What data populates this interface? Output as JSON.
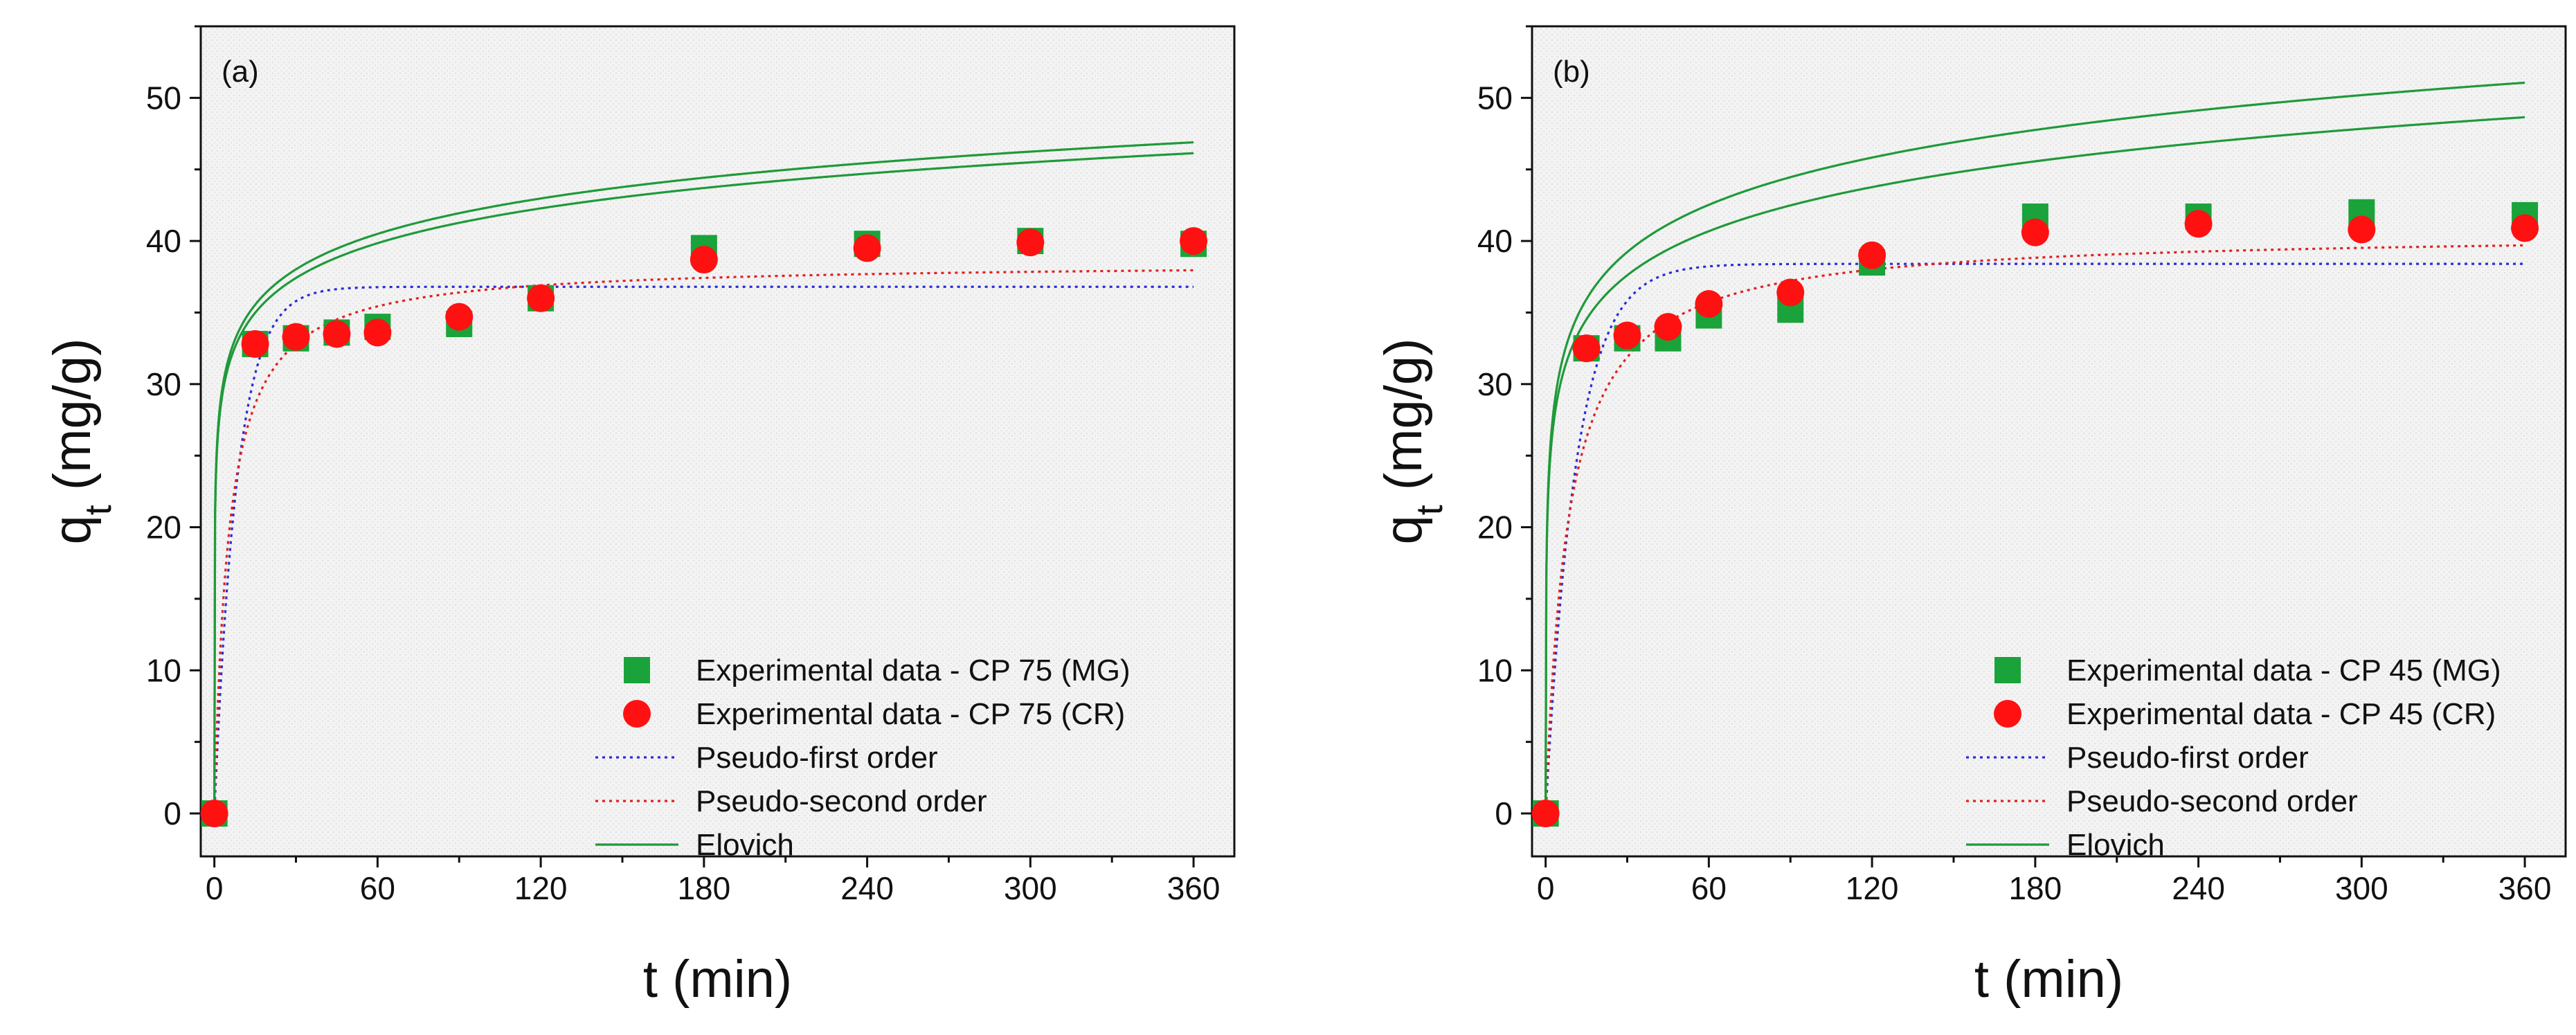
{
  "figure": {
    "panels": [
      "a",
      "b"
    ]
  },
  "colors": {
    "mg_marker": "#1aa33a",
    "cr_marker": "#ff1111",
    "pfo_line": "#2b2bd8",
    "pso_line": "#e02020",
    "elovich_line": "#1f9a3a",
    "axis": "#111111",
    "plot_background": "#f1f1f1"
  },
  "chart_data": [
    {
      "type": "scatter",
      "panel_label": "(a)",
      "xlabel": "t (min)",
      "ylabel_main": "q",
      "ylabel_sub": "t",
      "ylabel_unit": " (mg/g)",
      "xlim": [
        -5,
        375
      ],
      "ylim": [
        -3,
        55
      ],
      "xticks": [
        "0",
        "60",
        "120",
        "180",
        "240",
        "300",
        "360"
      ],
      "yticks": [
        "0",
        "10",
        "20",
        "30",
        "40",
        "50"
      ],
      "legend_position": "bottom-right",
      "series": [
        {
          "name": "Experimental data - CP 75 (MG)",
          "kind": "square",
          "x": [
            0,
            15,
            30,
            45,
            60,
            90,
            120,
            180,
            240,
            300,
            360
          ],
          "y": [
            0,
            32.8,
            33.2,
            33.6,
            34.0,
            34.2,
            36.0,
            39.5,
            39.8,
            40.0,
            39.8
          ]
        },
        {
          "name": "Experimental data - CP 75 (CR)",
          "kind": "circle",
          "x": [
            0,
            15,
            30,
            45,
            60,
            90,
            120,
            180,
            240,
            300,
            360
          ],
          "y": [
            0,
            32.8,
            33.3,
            33.5,
            33.6,
            34.7,
            36.0,
            38.7,
            39.5,
            39.9,
            40.0
          ]
        },
        {
          "name": "Pseudo-first order",
          "kind": "dotted",
          "model": "pfo",
          "qe": 36.8,
          "k": 0.12
        },
        {
          "name": "Pseudo-second order",
          "kind": "dotted",
          "model": "pso",
          "qe": 38.5,
          "k": 0.005
        },
        {
          "name": "Elovich",
          "kind": "solid",
          "model": "elovich",
          "a": 5000,
          "b": 0.28,
          "variant": "MG"
        },
        {
          "name": "",
          "kind": "solid",
          "model": "elovich",
          "a": 5000,
          "b": 0.285,
          "variant": "CR"
        }
      ]
    },
    {
      "type": "scatter",
      "panel_label": "(b)",
      "xlabel": "t (min)",
      "ylabel_main": "q",
      "ylabel_sub": "t",
      "ylabel_unit": " (mg/g)",
      "xlim": [
        -5,
        375
      ],
      "ylim": [
        -3,
        55
      ],
      "xticks": [
        "0",
        "60",
        "120",
        "180",
        "240",
        "300",
        "360"
      ],
      "yticks": [
        "0",
        "10",
        "20",
        "30",
        "40",
        "50"
      ],
      "legend_position": "bottom-right",
      "series": [
        {
          "name": "Experimental data - CP 45 (MG)",
          "kind": "square",
          "x": [
            0,
            15,
            30,
            45,
            60,
            90,
            120,
            180,
            240,
            300,
            360
          ],
          "y": [
            0,
            32.5,
            33.2,
            33.2,
            34.8,
            35.2,
            38.5,
            41.7,
            41.7,
            42.0,
            41.8
          ]
        },
        {
          "name": "Experimental data - CP 45 (CR)",
          "kind": "circle",
          "x": [
            0,
            15,
            30,
            45,
            60,
            90,
            120,
            180,
            240,
            300,
            360
          ],
          "y": [
            0,
            32.5,
            33.4,
            34.0,
            35.6,
            36.4,
            39.0,
            40.6,
            41.2,
            40.8,
            40.9
          ]
        },
        {
          "name": "Pseudo-first order",
          "kind": "dotted",
          "model": "pfo",
          "qe": 38.4,
          "k": 0.09
        },
        {
          "name": "Pseudo-second order",
          "kind": "dotted",
          "model": "pso",
          "qe": 40.6,
          "k": 0.003
        },
        {
          "name": "Elovich",
          "kind": "solid",
          "model": "elovich",
          "a": 600,
          "b": 0.21,
          "variant": "MG"
        },
        {
          "name": "",
          "kind": "solid",
          "model": "elovich",
          "a": 700,
          "b": 0.225,
          "variant": "CR"
        }
      ]
    }
  ]
}
